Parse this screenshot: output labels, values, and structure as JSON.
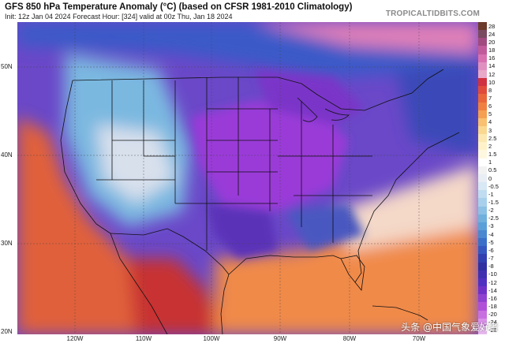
{
  "header": {
    "title": "GFS 850 hPa Temperature Anomaly (°C) (based on CFSR 1981-2010 Climatology)",
    "subtitle": "Init: 12z Jan 04 2024   Forecast Hour: [324]   valid at 00z Thu, Jan 18 2024",
    "brand": "TROPICALTIDBITS.COM"
  },
  "axes": {
    "lat_labels": [
      "50N",
      "40N",
      "30N",
      "20N"
    ],
    "lon_labels": [
      "120W",
      "110W",
      "100W",
      "90W",
      "80W",
      "70W"
    ]
  },
  "colorbar": {
    "labels": [
      "28",
      "24",
      "20",
      "18",
      "16",
      "14",
      "12",
      "10",
      "8",
      "7",
      "6",
      "5",
      "4",
      "3",
      "2.5",
      "2",
      "1.5",
      "1",
      "0.5",
      "0",
      "-0.5",
      "-1",
      "-1.5",
      "-2",
      "-2.5",
      "-3",
      "-4",
      "-5",
      "-6",
      "-7",
      "-8",
      "-10",
      "-12",
      "-14",
      "-16",
      "-18",
      "-20",
      "-24",
      "-28"
    ],
    "colors": [
      "#6b3a2a",
      "#7a4a60",
      "#a04a80",
      "#c05a9a",
      "#d870b0",
      "#e090c0",
      "#e8a8c8",
      "#d03040",
      "#e04a3a",
      "#e8663a",
      "#f08040",
      "#f4a050",
      "#f8c070",
      "#fad890",
      "#fce8b0",
      "#fff2c8",
      "#fff8e0",
      "#ffffff",
      "#f2f2f2",
      "#e8eef4",
      "#d8e8f4",
      "#c0dcf0",
      "#a8d0ec",
      "#8cc0e4",
      "#70b0dc",
      "#5aa0d8",
      "#4a88d0",
      "#3a70c8",
      "#3458c0",
      "#3040b0",
      "#3030a0",
      "#4030b0",
      "#5030c0",
      "#7030c8",
      "#9040d0",
      "#b050d8",
      "#c870e0",
      "#d890e8",
      "#e8b8f0"
    ]
  },
  "map_colors": {
    "cold_core": "#9a3ad8",
    "cold_mid": "#5a30b8",
    "cold_edge": "#3a5ac8",
    "cool": "#70b8e4",
    "neutral": "#f4f4f4",
    "warm_light": "#f8c070",
    "warm": "#e8663a",
    "hot": "#c83030",
    "boundary_line": "#111111"
  },
  "watermark": "头条 @中国气象爱好者"
}
